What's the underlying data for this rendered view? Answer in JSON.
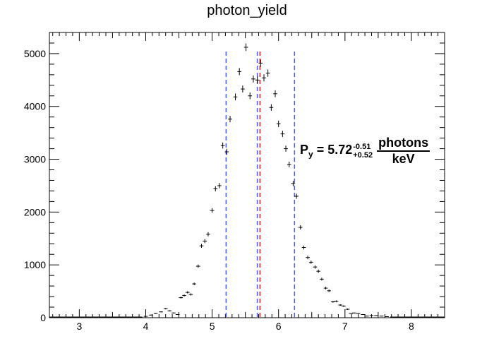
{
  "chart_data": {
    "type": "scatter",
    "title": "photon_yield",
    "xlabel": "",
    "ylabel": "",
    "xlim": [
      2.55,
      8.5
    ],
    "ylim": [
      0,
      5400
    ],
    "x_ticks": [
      3,
      4,
      5,
      6,
      7,
      8
    ],
    "y_ticks": [
      0,
      1000,
      2000,
      3000,
      4000,
      5000
    ],
    "x_tick_labels": [
      "3",
      "4",
      "5",
      "6",
      "7",
      "8"
    ],
    "y_tick_labels": [
      "0",
      "1000",
      "2000",
      "3000",
      "4000",
      "5000"
    ],
    "grid": false,
    "bin_width": 0.06,
    "series": [
      {
        "x": [
          4.0,
          4.08,
          4.15,
          4.23,
          4.3,
          4.36,
          4.42,
          4.48,
          4.53,
          4.58,
          4.63,
          4.68,
          4.73,
          4.79,
          4.84,
          4.89,
          4.94,
          5.0,
          5.05,
          5.11,
          5.16,
          5.22,
          5.27,
          5.35,
          5.41,
          5.46,
          5.51,
          5.57,
          5.62,
          5.68,
          5.73,
          5.78,
          5.84,
          5.89,
          5.95,
          6.0,
          6.06,
          6.11,
          6.16,
          6.22,
          6.27,
          6.33,
          6.38,
          6.44,
          6.49,
          6.55,
          6.6,
          6.65,
          6.71,
          6.76,
          6.82,
          6.87,
          6.93,
          6.98,
          7.04,
          7.09,
          7.14,
          7.2,
          7.27,
          7.33,
          7.4,
          7.47,
          7.55,
          7.63
        ],
        "values": [
          25,
          50,
          80,
          110,
          170,
          130,
          90,
          60,
          380,
          420,
          480,
          440,
          640,
          975,
          1360,
          1450,
          1580,
          2030,
          2440,
          2500,
          3260,
          3140,
          3760,
          4180,
          4660,
          4330,
          5120,
          4200,
          4520,
          4500,
          4820,
          4540,
          4630,
          3980,
          4240,
          3670,
          3480,
          3200,
          2900,
          2540,
          2300,
          1710,
          1330,
          1140,
          1050,
          960,
          880,
          730,
          560,
          510,
          300,
          310,
          240,
          220,
          160,
          80,
          90,
          80,
          60,
          30,
          40,
          40,
          30,
          20
        ],
        "y_err": [
          5,
          7,
          9,
          10,
          13,
          11,
          9,
          8,
          19,
          20,
          22,
          21,
          25,
          31,
          37,
          38,
          40,
          45,
          49,
          50,
          57,
          56,
          61,
          65,
          68,
          66,
          72,
          65,
          67,
          67,
          69,
          67,
          68,
          63,
          65,
          61,
          59,
          57,
          54,
          50,
          48,
          41,
          36,
          34,
          32,
          31,
          30,
          27,
          24,
          23,
          17,
          18,
          15,
          15,
          13,
          9,
          9,
          9,
          8,
          5,
          6,
          6,
          5,
          4
        ]
      }
    ],
    "vlines": [
      {
        "x": 5.21,
        "color": "#4a5cff",
        "style": "dashed"
      },
      {
        "x": 5.68,
        "color": "#4a5cff",
        "style": "dashed"
      },
      {
        "x": 5.72,
        "color": "#e0202c",
        "style": "dashed"
      },
      {
        "x": 6.24,
        "color": "#4a5cff",
        "style": "dashed"
      }
    ],
    "annotation": {
      "label": "P",
      "label_sub": "y",
      "value": " = 5.72",
      "err_up": "-0.51",
      "err_down": "+0.52",
      "unit_num": "photons",
      "unit_den": "keV"
    }
  }
}
